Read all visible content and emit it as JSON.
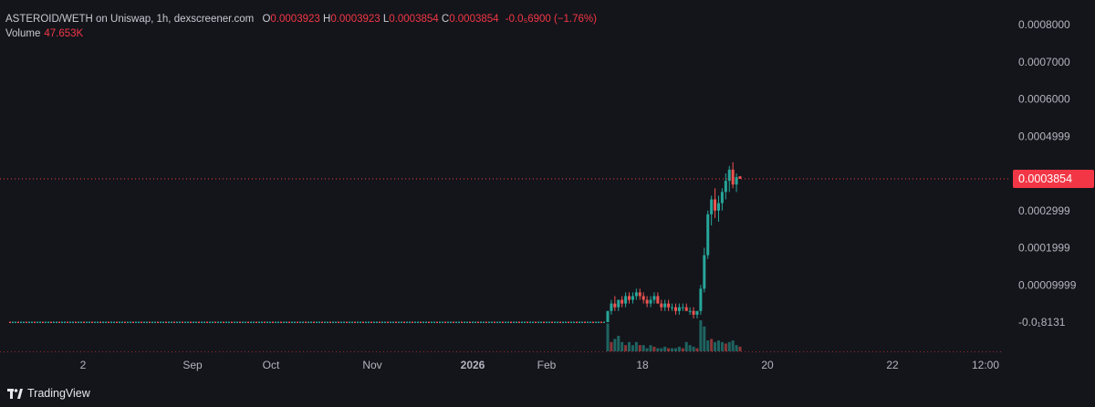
{
  "legend": {
    "title": "ASTEROID/WETH on Uniswap, 1h, dexscreener.com",
    "o_label": "O",
    "o_value": "0.0003923",
    "h_label": "H",
    "h_value": "0.0003923",
    "l_label": "L",
    "l_value": "0.0003854",
    "c_label": "C",
    "c_value": "0.0003854",
    "change": "-0.0₅6900 (−1.76%)",
    "volume_label": "Volume",
    "volume_value": "47.653K"
  },
  "last_price_badge": "0.0003854",
  "footer": {
    "brand": "TradingView"
  },
  "colors": {
    "up": "#26a69a",
    "down": "#ef5350",
    "badge": "#f23645",
    "background": "#14151b"
  },
  "chart_data": {
    "type": "candlestick",
    "symbol": "ASTEROID/WETH",
    "ylim": [
      -1e-05,
      0.00081
    ],
    "yticks": [
      {
        "value": 0.0008,
        "label": "0.0008000"
      },
      {
        "value": 0.0007,
        "label": "0.0007000"
      },
      {
        "value": 0.0006,
        "label": "0.0006000"
      },
      {
        "value": 0.0005,
        "label": "0.0004999"
      },
      {
        "value": 0.0003,
        "label": "0.0002999"
      },
      {
        "value": 0.0002,
        "label": "0.0001999"
      },
      {
        "value": 0.0001,
        "label": "0.00009999"
      },
      {
        "value": 0.0,
        "label": "-0.0₁8131"
      }
    ],
    "xticks": [
      "2",
      "Sep",
      "Oct",
      "Nov",
      "2026",
      "Feb",
      "18",
      "20",
      "22",
      "12:00"
    ],
    "xtick_bold": [
      false,
      false,
      false,
      false,
      true,
      false,
      false,
      false,
      false,
      false
    ],
    "last_price": 0.0003854,
    "segments": [
      {
        "label": "flat",
        "price": 0.0,
        "start": 0.0,
        "end": 0.548
      },
      {
        "label": "plateau",
        "price": 4e-05,
        "start": 0.553,
        "end": 0.645
      },
      {
        "label": "spike",
        "price": 0.0003,
        "start": 0.647,
        "end": 0.675
      }
    ],
    "candles": [
      [
        0.0,
        0.0,
        3e-05,
        0.0,
        3e-05
      ],
      [
        3e-05,
        3e-05,
        6e-05,
        2e-05,
        5e-05
      ],
      [
        5e-05,
        5e-05,
        7e-05,
        3e-05,
        4e-05
      ],
      [
        4e-05,
        4e-05,
        6e-05,
        3e-05,
        6e-05
      ],
      [
        6e-05,
        6e-05,
        7e-05,
        4e-05,
        5e-05
      ],
      [
        5e-05,
        5e-05,
        8e-05,
        4e-05,
        7e-05
      ],
      [
        7e-05,
        7e-05,
        8e-05,
        5e-05,
        6e-05
      ],
      [
        6e-05,
        6e-05,
        8e-05,
        5e-05,
        7e-05
      ],
      [
        7e-05,
        7e-05,
        9e-05,
        6e-05,
        8e-05
      ],
      [
        8e-05,
        8e-05,
        9e-05,
        6e-05,
        7e-05
      ],
      [
        7e-05,
        7e-05,
        8e-05,
        5e-05,
        6e-05
      ],
      [
        6e-05,
        6e-05,
        7e-05,
        4e-05,
        5e-05
      ],
      [
        5e-05,
        5e-05,
        7e-05,
        4e-05,
        6e-05
      ],
      [
        6e-05,
        6e-05,
        8e-05,
        5e-05,
        7e-05
      ],
      [
        7e-05,
        7e-05,
        8e-05,
        5e-05,
        5e-05
      ],
      [
        5e-05,
        5e-05,
        6e-05,
        3e-05,
        4e-05
      ],
      [
        4e-05,
        4e-05,
        6e-05,
        3e-05,
        5e-05
      ],
      [
        5e-05,
        5e-05,
        6e-05,
        3e-05,
        4e-05
      ],
      [
        4e-05,
        4e-05,
        5e-05,
        3e-05,
        4e-05
      ],
      [
        4e-05,
        4e-05,
        5e-05,
        2e-05,
        3e-05
      ],
      [
        3e-05,
        3e-05,
        5e-05,
        2e-05,
        4e-05
      ],
      [
        4e-05,
        4e-05,
        5e-05,
        3e-05,
        4e-05
      ],
      [
        4e-05,
        4e-05,
        5e-05,
        3e-05,
        3e-05
      ],
      [
        3e-05,
        3e-05,
        4e-05,
        2e-05,
        3e-05
      ],
      [
        3e-05,
        3e-05,
        4e-05,
        1e-05,
        2e-05
      ],
      [
        2e-05,
        2e-05,
        3e-05,
        1e-05,
        3e-05
      ],
      [
        3e-05,
        3e-05,
        0.0001,
        2e-05,
        9e-05
      ],
      [
        9e-05,
        9e-05,
        0.0002,
        8e-05,
        0.00018
      ],
      [
        0.00018,
        0.00018,
        0.0003,
        0.00017,
        0.00029
      ],
      [
        0.00029,
        0.00029,
        0.00034,
        0.00026,
        0.00033
      ],
      [
        0.00033,
        0.00033,
        0.00036,
        0.00028,
        0.0003
      ],
      [
        0.0003,
        0.0003,
        0.00034,
        0.00027,
        0.00032
      ],
      [
        0.00032,
        0.00032,
        0.00036,
        0.0003,
        0.00035
      ],
      [
        0.00035,
        0.00035,
        0.0004,
        0.00033,
        0.00038
      ],
      [
        0.00038,
        0.00038,
        0.00042,
        0.00035,
        0.00041
      ],
      [
        0.00041,
        0.00041,
        0.00043,
        0.00036,
        0.00037
      ],
      [
        0.00037,
        0.00037,
        0.0004,
        0.00035,
        0.00039
      ],
      [
        0.000392,
        0.0003923,
        0.0003923,
        0.0003854,
        0.0003854
      ]
    ],
    "volumes": [
      0.9,
      0.3,
      0.4,
      0.5,
      0.3,
      0.2,
      0.3,
      0.2,
      0.3,
      0.2,
      0.2,
      0.1,
      0.2,
      0.15,
      0.1,
      0.1,
      0.15,
      0.1,
      0.1,
      0.1,
      0.15,
      0.1,
      0.3,
      0.2,
      0.15,
      0.1,
      1.0,
      0.8,
      0.35,
      0.4,
      0.3,
      0.35,
      0.3,
      0.25,
      0.3,
      0.35,
      0.2,
      0.15
    ]
  }
}
